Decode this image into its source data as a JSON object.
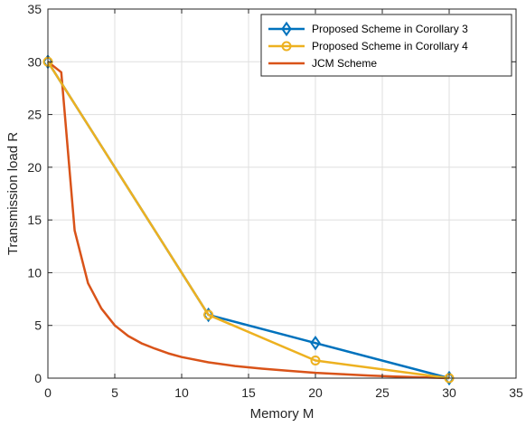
{
  "chart_data": {
    "type": "line",
    "title": "",
    "xlabel": "Memory M",
    "ylabel": "Transmission load R",
    "xlim": [
      0,
      35
    ],
    "ylim": [
      0,
      35
    ],
    "xticks": [
      0,
      5,
      10,
      15,
      20,
      25,
      30,
      35
    ],
    "yticks": [
      0,
      5,
      10,
      15,
      20,
      25,
      30,
      35
    ],
    "grid": true,
    "legend_position": "top-right",
    "series": [
      {
        "name": "Proposed Scheme in Corollary 3",
        "color": "#0072BD",
        "marker": "diamond",
        "x": [
          0,
          12,
          20,
          30
        ],
        "y": [
          30,
          6,
          3.33,
          0
        ]
      },
      {
        "name": "Proposed Scheme in Corollary 4",
        "color": "#EDB120",
        "marker": "circle",
        "x": [
          0,
          12,
          20,
          30
        ],
        "y": [
          30,
          6,
          1.67,
          0
        ]
      },
      {
        "name": "JCM Scheme",
        "color": "#D95319",
        "marker": "none",
        "x": [
          0,
          1,
          2,
          3,
          4,
          5,
          6,
          7,
          8,
          9,
          10,
          12,
          14,
          16,
          18,
          20,
          22,
          24,
          26,
          28,
          30
        ],
        "y": [
          30,
          29,
          14,
          9,
          6.6,
          5,
          4,
          3.3,
          2.8,
          2.35,
          2,
          1.5,
          1.15,
          0.9,
          0.7,
          0.5,
          0.38,
          0.25,
          0.15,
          0.07,
          0
        ]
      }
    ]
  }
}
